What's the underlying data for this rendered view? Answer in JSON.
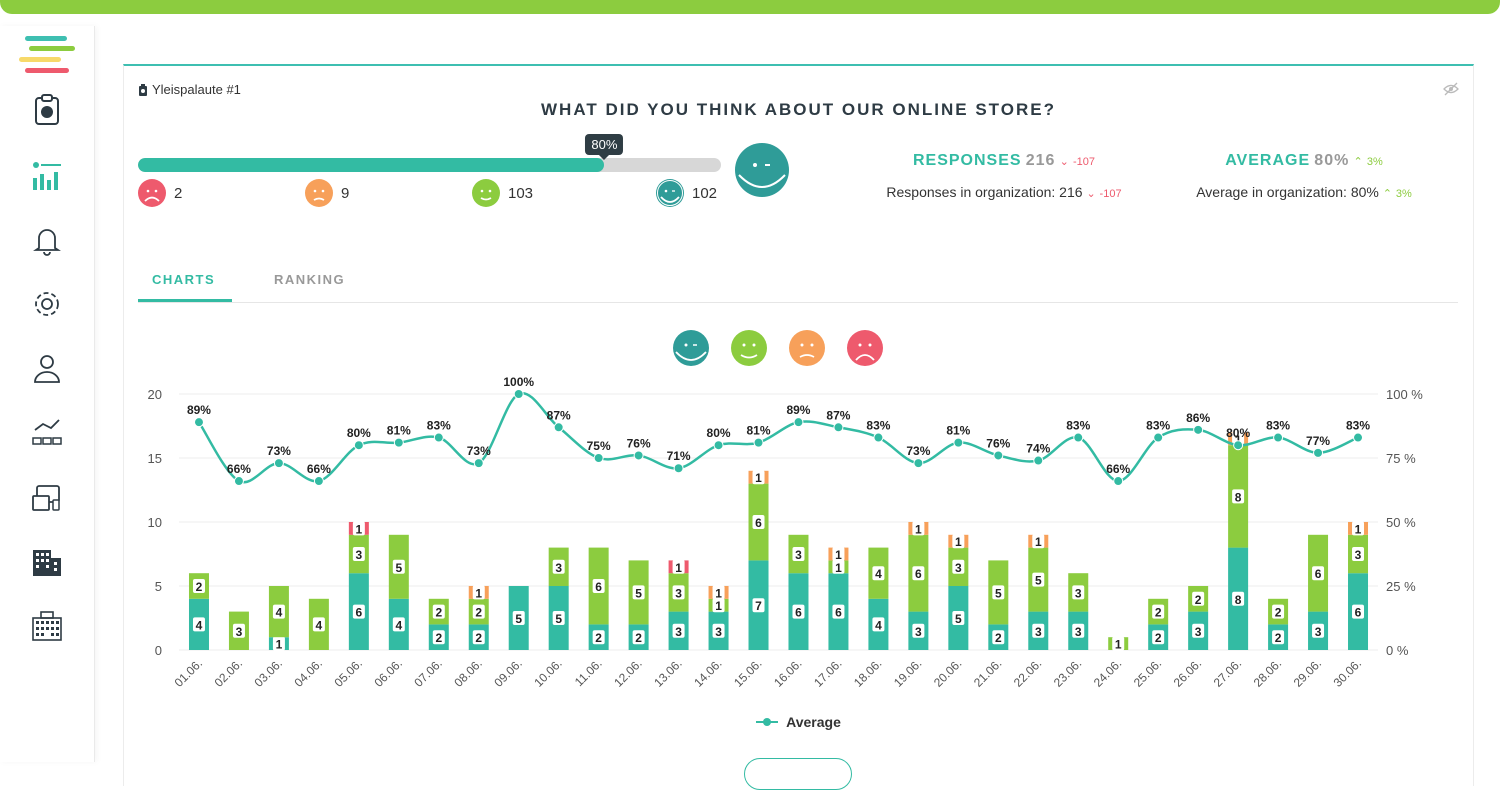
{
  "colors": {
    "accent": "#33bba3",
    "green": "#8ccc3f",
    "orange": "#f7a05a",
    "red": "#ee5a6d",
    "teal": "#2f9c98"
  },
  "sidebar": {
    "items": [
      "survey-icon",
      "analytics-icon",
      "bell-icon",
      "gear-icon",
      "user-icon",
      "workflow-icon",
      "devices-icon",
      "building-icon",
      "office-building-icon"
    ]
  },
  "survey": {
    "name": "Yleispalaute #1",
    "question": "WHAT DID YOU THINK ABOUT OUR ONLINE STORE?"
  },
  "progress": {
    "value": 0.8,
    "label": "80%"
  },
  "counts": [
    {
      "face": "very-unhappy",
      "value": "2"
    },
    {
      "face": "unhappy",
      "value": "9"
    },
    {
      "face": "happy",
      "value": "103"
    },
    {
      "face": "very-happy",
      "value": "102"
    }
  ],
  "responses": {
    "title": "RESPONSES",
    "value": "216",
    "change": "-107",
    "org_label": "Responses in organization: 216",
    "org_change": "-107"
  },
  "average": {
    "title": "AVERAGE",
    "value": "80%",
    "change": "3%",
    "org_label": "Average in organization: 80%",
    "org_change": "3%"
  },
  "tabs": {
    "charts": "CHARTS",
    "ranking": "RANKING"
  },
  "chart_data": {
    "type": "bar",
    "categories": [
      "01.06.",
      "02.06.",
      "03.06.",
      "04.06.",
      "05.06.",
      "06.06.",
      "07.06.",
      "08.06.",
      "09.06.",
      "10.06.",
      "11.06.",
      "12.06.",
      "13.06.",
      "14.06.",
      "15.06.",
      "16.06.",
      "17.06.",
      "18.06.",
      "19.06.",
      "20.06.",
      "21.06.",
      "22.06.",
      "23.06.",
      "24.06.",
      "25.06.",
      "26.06.",
      "27.06.",
      "28.06.",
      "29.06.",
      "30.06."
    ],
    "series": [
      {
        "values": [
          4,
          0,
          1,
          0,
          6,
          4,
          2,
          2,
          5,
          5,
          2,
          2,
          3,
          3,
          7,
          6,
          6,
          4,
          3,
          5,
          2,
          3,
          3,
          0,
          2,
          3,
          8,
          2,
          3,
          6
        ]
      },
      {
        "values": [
          2,
          3,
          4,
          4,
          3,
          5,
          2,
          2,
          0,
          3,
          6,
          5,
          3,
          1,
          6,
          3,
          1,
          4,
          6,
          3,
          5,
          5,
          3,
          1,
          2,
          2,
          8,
          2,
          6,
          3
        ]
      },
      {
        "values": [
          0,
          0,
          0,
          0,
          0,
          0,
          0,
          1,
          0,
          0,
          0,
          0,
          0,
          1,
          1,
          0,
          1,
          0,
          1,
          1,
          0,
          1,
          0,
          0,
          0,
          0,
          1,
          0,
          0,
          1
        ]
      },
      {
        "values": [
          0,
          0,
          0,
          0,
          1,
          0,
          0,
          0,
          0,
          0,
          0,
          0,
          1,
          0,
          0,
          0,
          0,
          0,
          0,
          0,
          0,
          0,
          0,
          0,
          0,
          0,
          0,
          0,
          0,
          0
        ]
      },
      {
        "name": "Average",
        "type": "line",
        "values": [
          89,
          66,
          73,
          66,
          80,
          81,
          83,
          73,
          100,
          87,
          75,
          76,
          71,
          80,
          81,
          89,
          87,
          83,
          73,
          81,
          76,
          74,
          83,
          66,
          83,
          86,
          80,
          83,
          77,
          83
        ]
      }
    ],
    "ylim": [
      0,
      20
    ],
    "y_ticks": [
      "0",
      "5",
      "10",
      "15",
      "20"
    ],
    "y2lim": [
      0,
      100
    ],
    "y2_ticks": [
      "0 %",
      "25 %",
      "50 %",
      "75 %",
      "100 %"
    ],
    "legend": "bottom"
  }
}
